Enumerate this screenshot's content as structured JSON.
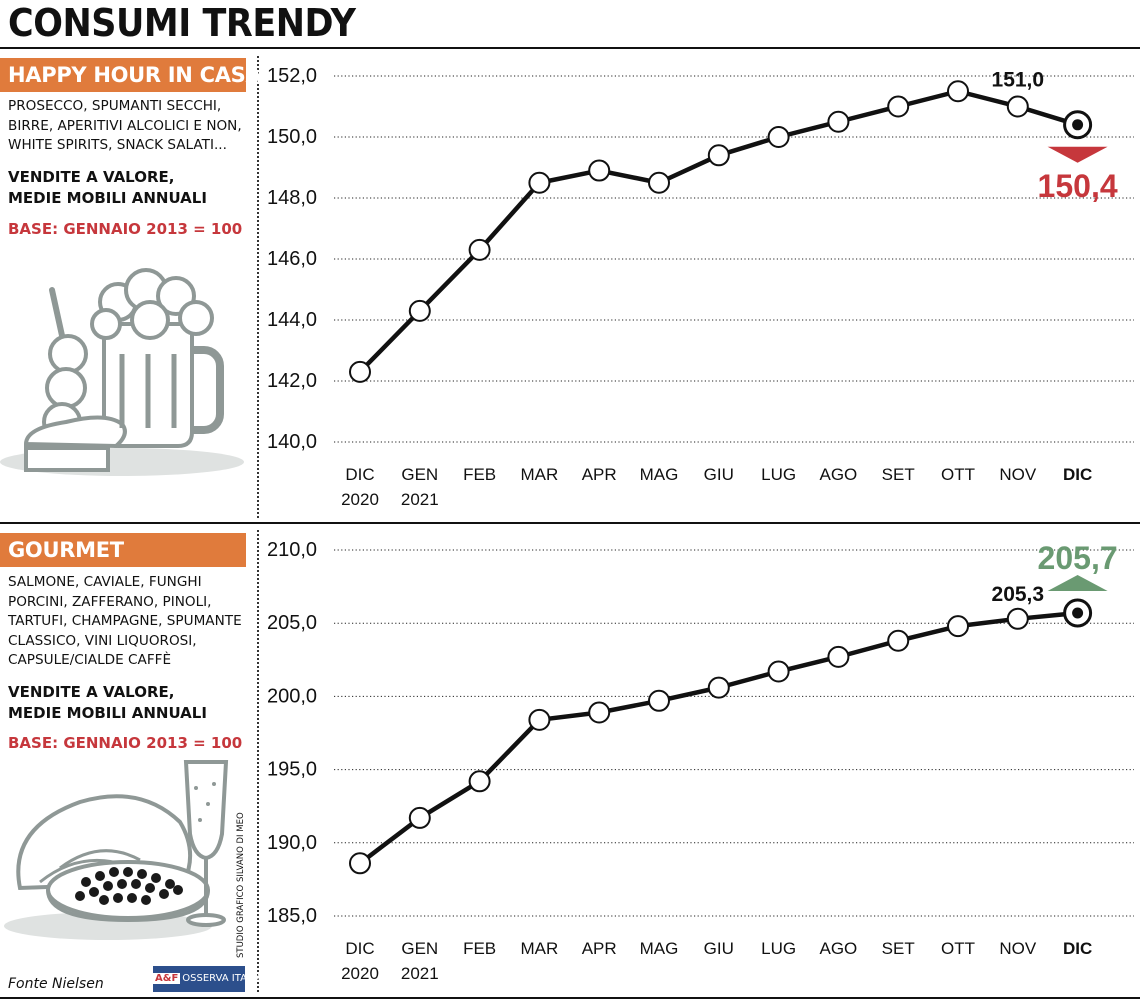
{
  "title": "CONSUMI TRENDY",
  "panels": [
    {
      "section_title": "HAPPY HOUR IN CASA",
      "description": [
        "PROSECCO, SPUMANTI SECCHI,",
        "BIRRE, APERITIVI ALCOLICI E NON,",
        "WHITE SPIRITS, SNACK SALATI..."
      ],
      "measure": [
        "VENDITE A VALORE,",
        "MEDIE MOBILI ANNUALI"
      ],
      "base": "BASE: GENNAIO 2013 = 100"
    },
    {
      "section_title": "GOURMET",
      "description": [
        "SALMONE, CAVIALE, FUNGHI",
        "PORCINI, ZAFFERANO, PINOLI,",
        "TARTUFI, CHAMPAGNE, SPUMANTE",
        "CLASSICO, VINI LIQUOROSI,",
        "CAPSULE/CIALDE CAFFÈ"
      ],
      "measure": [
        "VENDITE A VALORE,",
        "MEDIE MOBILI ANNUALI"
      ],
      "base": "BASE: GENNAIO 2013 = 100"
    }
  ],
  "source": "Fonte Nielsen",
  "logo_text": "OSSERVA ITALIA",
  "logo_mark": "A&F",
  "credit": "STUDIO GRAFICO SILVANO DI MEO",
  "colors": {
    "accent": "#e07b3c",
    "down": "#c6373c",
    "up": "#6a9a72",
    "line": "#111111"
  },
  "chart_data": [
    {
      "type": "line",
      "x": [
        [
          "DIC",
          "2020"
        ],
        [
          "GEN",
          "2021"
        ],
        [
          "FEB"
        ],
        [
          "MAR"
        ],
        [
          "APR"
        ],
        [
          "MAG"
        ],
        [
          "GIU"
        ],
        [
          "LUG"
        ],
        [
          "AGO"
        ],
        [
          "SET"
        ],
        [
          "OTT"
        ],
        [
          "NOV"
        ],
        [
          "DIC"
        ]
      ],
      "values": [
        142.3,
        144.3,
        146.3,
        148.5,
        148.9,
        148.5,
        149.4,
        150.0,
        150.5,
        151.0,
        151.5,
        151.0,
        150.4
      ],
      "ylim": [
        140,
        152
      ],
      "yticks": [
        "140,0",
        "142,0",
        "144,0",
        "146,0",
        "148,0",
        "150,0",
        "152,0"
      ],
      "tick_values": [
        140,
        142,
        144,
        146,
        148,
        150,
        152
      ],
      "annotations": [
        {
          "point": 11,
          "text": "151,0"
        },
        {
          "point": 12,
          "text": "150,4",
          "direction": "down"
        }
      ],
      "grid": "horizontal"
    },
    {
      "type": "line",
      "x": [
        [
          "DIC",
          "2020"
        ],
        [
          "GEN",
          "2021"
        ],
        [
          "FEB"
        ],
        [
          "MAR"
        ],
        [
          "APR"
        ],
        [
          "MAG"
        ],
        [
          "GIU"
        ],
        [
          "LUG"
        ],
        [
          "AGO"
        ],
        [
          "SET"
        ],
        [
          "OTT"
        ],
        [
          "NOV"
        ],
        [
          "DIC"
        ]
      ],
      "values": [
        188.6,
        191.7,
        194.2,
        198.4,
        198.9,
        199.7,
        200.6,
        201.7,
        202.7,
        203.8,
        204.8,
        205.3,
        205.7
      ],
      "ylim": [
        185,
        210
      ],
      "yticks": [
        "185,0",
        "190,0",
        "195,0",
        "200,0",
        "205,0",
        "210,0"
      ],
      "tick_values": [
        185,
        190,
        195,
        200,
        205,
        210
      ],
      "annotations": [
        {
          "point": 11,
          "text": "205,3"
        },
        {
          "point": 12,
          "text": "205,7",
          "direction": "up"
        }
      ],
      "grid": "horizontal"
    }
  ]
}
